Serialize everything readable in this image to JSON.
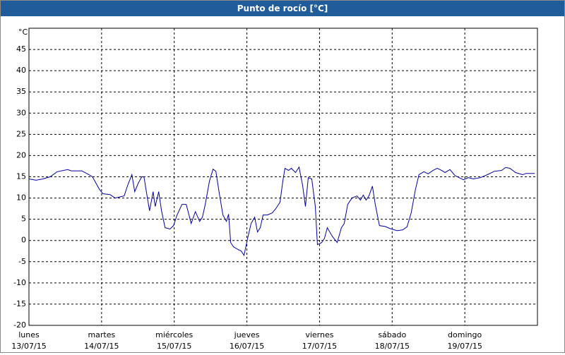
{
  "chart_data": {
    "type": "line",
    "title": "Punto de rocío [°C]",
    "y_unit": "°C",
    "xlim": [
      0,
      7
    ],
    "xticks": [
      {
        "value": 0,
        "day": "lunes",
        "date": "13/07/15"
      },
      {
        "value": 1,
        "day": "martes",
        "date": "14/07/15"
      },
      {
        "value": 2,
        "day": "miércoles",
        "date": "15/07/15"
      },
      {
        "value": 3,
        "day": "jueves",
        "date": "16/07/15"
      },
      {
        "value": 4,
        "day": "viernes",
        "date": "17/07/15"
      },
      {
        "value": 5,
        "day": "sábado",
        "date": "18/07/15"
      },
      {
        "value": 6,
        "day": "domingo",
        "date": "19/07/15"
      }
    ],
    "ylim": [
      -20,
      50
    ],
    "yticks": [
      -20,
      -15,
      -10,
      -5,
      0,
      5,
      10,
      15,
      20,
      25,
      30,
      35,
      40,
      45
    ],
    "grid": true,
    "series": [
      {
        "color": "#0000a0",
        "x": [
          0,
          0.097,
          0.194,
          0.291,
          0.388,
          0.534,
          0.583,
          0.728,
          0.825,
          0.874,
          0.971,
          1.019,
          1.117,
          1.184,
          1.262,
          1.311,
          1.359,
          1.417,
          1.456,
          1.505,
          1.553,
          1.583,
          1.621,
          1.66,
          1.709,
          1.738,
          1.786,
          1.825,
          1.874,
          1.942,
          1.99,
          2.039,
          2.107,
          2.165,
          2.233,
          2.291,
          2.35,
          2.388,
          2.427,
          2.485,
          2.534,
          2.573,
          2.621,
          2.67,
          2.718,
          2.748,
          2.777,
          2.816,
          2.864,
          2.922,
          2.961,
          3.01,
          3.058,
          3.107,
          3.146,
          3.184,
          3.223,
          3.282,
          3.35,
          3.398,
          3.456,
          3.495,
          3.524,
          3.573,
          3.612,
          3.67,
          3.718,
          3.767,
          3.806,
          3.845,
          3.893,
          3.942,
          3.971,
          4.029,
          4.068,
          4.107,
          4.175,
          4.243,
          4.301,
          4.34,
          4.388,
          4.447,
          4.515,
          4.563,
          4.602,
          4.641,
          4.68,
          4.728,
          4.767,
          4.825,
          4.903,
          4.971,
          5.068,
          5.146,
          5.204,
          5.262,
          5.32,
          5.369,
          5.437,
          5.495,
          5.563,
          5.621,
          5.68,
          5.728,
          5.796,
          5.864,
          5.922,
          5.981,
          6.049,
          6.117,
          6.214,
          6.311,
          6.408,
          6.505,
          6.563,
          6.621,
          6.699,
          6.796,
          6.845,
          6.961
        ],
        "values": [
          14.5,
          14.2,
          14.5,
          15,
          16.2,
          16.7,
          16.4,
          16.4,
          15.5,
          15,
          12,
          11,
          10.8,
          10,
          10.3,
          10.5,
          13,
          15.5,
          11.5,
          13.5,
          15,
          15,
          11,
          7,
          11.5,
          8,
          11.5,
          7,
          3,
          2.7,
          3.5,
          6,
          8.5,
          8.5,
          4,
          6.8,
          4.5,
          5.5,
          8.5,
          14,
          16.8,
          16.3,
          11,
          6,
          4.5,
          6.2,
          -0.5,
          -1.5,
          -2,
          -2.5,
          -3.5,
          0.5,
          4,
          5.5,
          2,
          3,
          6,
          6,
          6.5,
          7.5,
          9,
          14,
          17,
          16.5,
          17,
          16,
          17.3,
          13,
          8,
          14.8,
          14.5,
          8,
          -1,
          -0.5,
          0.5,
          3,
          1,
          -0.5,
          3,
          4,
          8.5,
          10,
          10.5,
          9.5,
          10.7,
          9.5,
          10.5,
          12.8,
          8.5,
          3.5,
          3.3,
          2.8,
          2.3,
          2.5,
          3.2,
          6.5,
          12,
          15.5,
          16.2,
          15.7,
          16.5,
          17,
          16.5,
          16,
          16.7,
          15.3,
          14.8,
          14.3,
          14.8,
          14.5,
          14.8,
          15.5,
          16.3,
          16.5,
          17.2,
          17,
          16,
          15.5,
          15.8,
          15.8
        ]
      }
    ]
  }
}
